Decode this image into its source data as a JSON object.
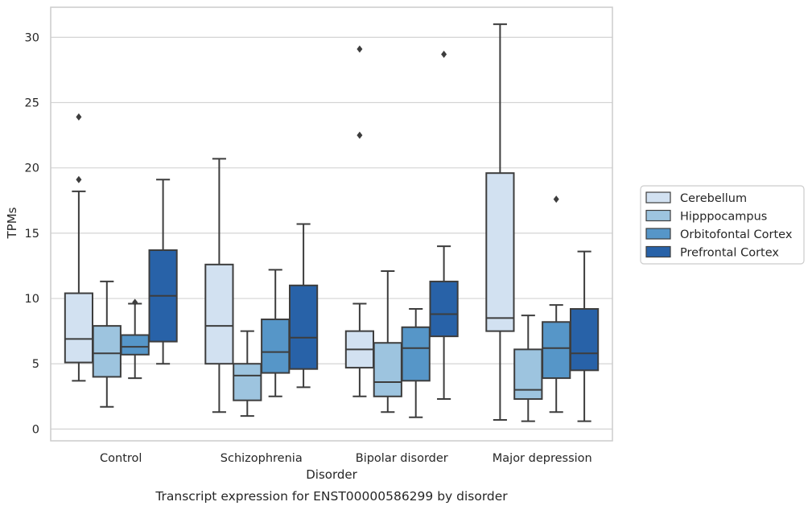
{
  "chart_data": {
    "type": "boxplot",
    "title": "Transcript expression for ENST00000586299 by disorder",
    "xlabel": "Disorder",
    "ylabel": "TPMs",
    "categories": [
      "Control",
      "Schizophrenia",
      "Bipolar disorder",
      "Major depression"
    ],
    "ylim": [
      -0.9,
      32.3
    ],
    "yticks": [
      0,
      5,
      10,
      15,
      20,
      25,
      30
    ],
    "grid": true,
    "legend_position": "right",
    "series": [
      {
        "name": "Cerebellum",
        "color": "#d2e1f1",
        "boxes": [
          {
            "whislo": 3.7,
            "q1": 5.1,
            "med": 6.9,
            "q3": 10.4,
            "whishi": 18.2,
            "fliers": [
              19.1,
              23.9
            ]
          },
          {
            "whislo": 1.3,
            "q1": 5.0,
            "med": 7.9,
            "q3": 12.6,
            "whishi": 20.7,
            "fliers": []
          },
          {
            "whislo": 2.5,
            "q1": 4.7,
            "med": 6.1,
            "q3": 7.5,
            "whishi": 9.6,
            "fliers": [
              22.5,
              29.1
            ]
          },
          {
            "whislo": 0.7,
            "q1": 7.5,
            "med": 8.5,
            "q3": 19.6,
            "whishi": 31.0,
            "fliers": []
          }
        ]
      },
      {
        "name": "Hipppocampus",
        "color": "#9dc4df",
        "boxes": [
          {
            "whislo": 1.7,
            "q1": 4.0,
            "med": 5.8,
            "q3": 7.9,
            "whishi": 11.3,
            "fliers": []
          },
          {
            "whislo": 1.0,
            "q1": 2.2,
            "med": 4.1,
            "q3": 5.0,
            "whishi": 7.5,
            "fliers": []
          },
          {
            "whislo": 1.3,
            "q1": 2.5,
            "med": 3.6,
            "q3": 6.6,
            "whishi": 12.1,
            "fliers": []
          },
          {
            "whislo": 0.6,
            "q1": 2.3,
            "med": 3.0,
            "q3": 6.1,
            "whishi": 8.7,
            "fliers": []
          }
        ]
      },
      {
        "name": "Orbitofontal Cortex",
        "color": "#5696c8",
        "boxes": [
          {
            "whislo": 3.9,
            "q1": 5.7,
            "med": 6.3,
            "q3": 7.2,
            "whishi": 9.6,
            "fliers": [
              9.7
            ]
          },
          {
            "whislo": 2.5,
            "q1": 4.3,
            "med": 5.9,
            "q3": 8.4,
            "whishi": 12.2,
            "fliers": []
          },
          {
            "whislo": 0.9,
            "q1": 3.7,
            "med": 6.2,
            "q3": 7.8,
            "whishi": 9.2,
            "fliers": []
          },
          {
            "whislo": 1.3,
            "q1": 3.9,
            "med": 6.2,
            "q3": 8.2,
            "whishi": 9.5,
            "fliers": [
              17.6
            ]
          }
        ]
      },
      {
        "name": "Prefrontal Cortex",
        "color": "#2862a8",
        "boxes": [
          {
            "whislo": 5.0,
            "q1": 6.7,
            "med": 10.2,
            "q3": 13.7,
            "whishi": 19.1,
            "fliers": []
          },
          {
            "whislo": 3.2,
            "q1": 4.6,
            "med": 7.0,
            "q3": 11.0,
            "whishi": 15.7,
            "fliers": []
          },
          {
            "whislo": 2.3,
            "q1": 7.1,
            "med": 8.8,
            "q3": 11.3,
            "whishi": 14.0,
            "fliers": [
              28.7
            ]
          },
          {
            "whislo": 0.6,
            "q1": 4.5,
            "med": 5.8,
            "q3": 9.2,
            "whishi": 13.6,
            "fliers": []
          }
        ]
      }
    ]
  }
}
